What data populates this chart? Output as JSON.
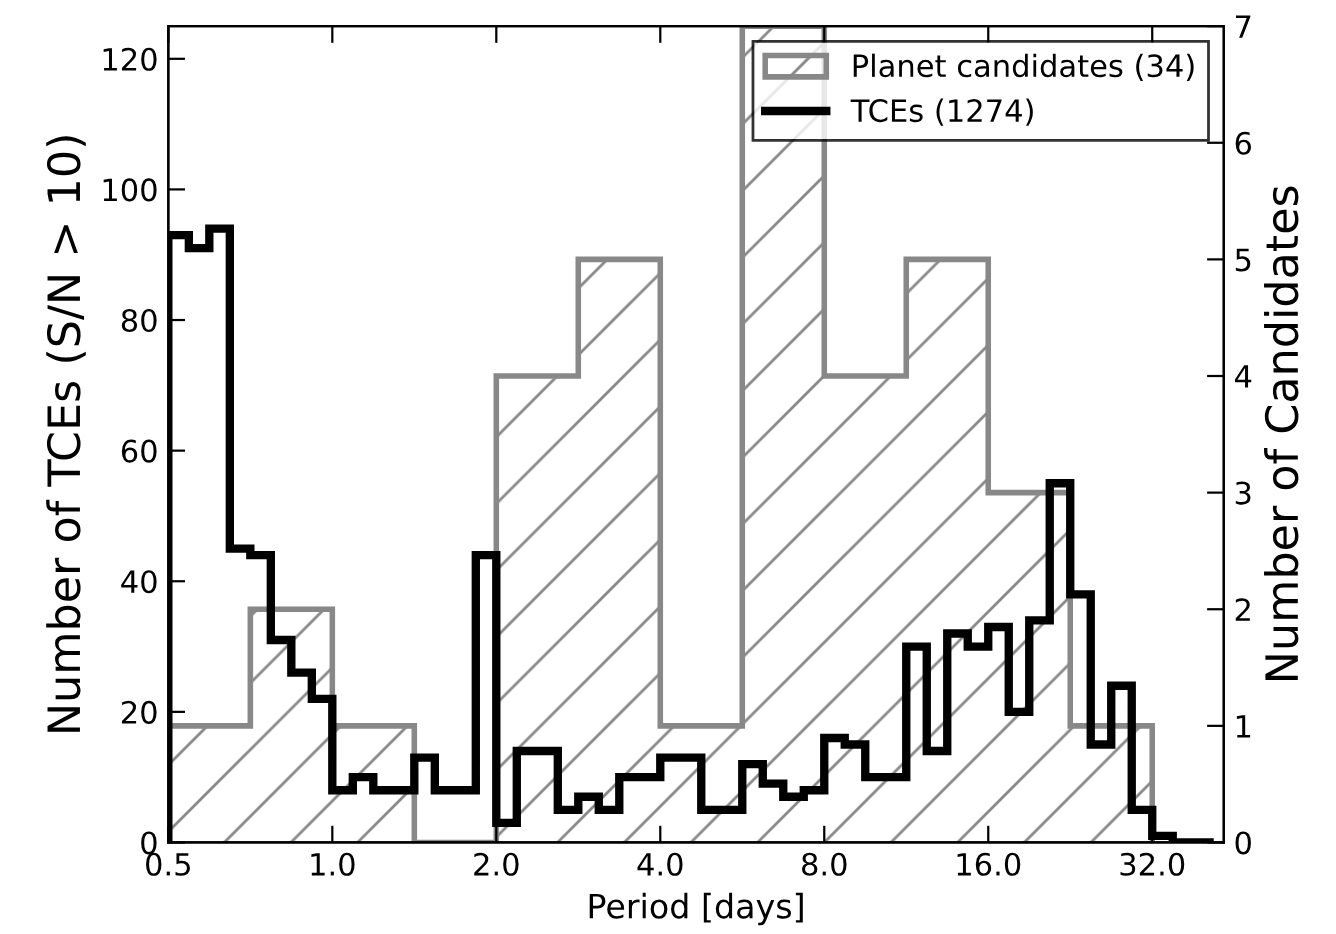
{
  "chart_data": {
    "type": "histogram",
    "xlabel": "Period [days]",
    "ylabel": "Number of TCEs (S/N > 10)",
    "y2label": "Number of Candidates",
    "log": "x",
    "xlim": [
      0.5,
      43.3
    ],
    "xticks": [
      0.5,
      {
        "value": 1,
        "label": "1.0"
      },
      {
        "value": 2,
        "label": "2.0"
      },
      {
        "value": 4,
        "label": "4.0"
      },
      {
        "value": 8,
        "label": "8.0"
      },
      {
        "value": 16,
        "label": "16.0"
      },
      {
        "value": 32,
        "label": "32.0"
      }
    ],
    "ylim": [
      0,
      125
    ],
    "yticks": [
      0,
      20,
      40,
      60,
      80,
      100,
      120
    ],
    "y2lim": [
      0,
      7
    ],
    "y2ticks": [
      0,
      1,
      2,
      3,
      4,
      5,
      6,
      7
    ],
    "grid": false,
    "legend": "top right",
    "bins": [
      0.5,
      0.5453,
      0.5946,
      0.6484,
      0.7071,
      0.7711,
      0.8409,
      0.917,
      1,
      1.0905,
      1.1892,
      1.2968,
      1.4142,
      1.5422,
      1.6818,
      1.834,
      2,
      2.181,
      2.3784,
      2.5937,
      2.8284,
      3.0844,
      3.3636,
      3.668,
      4,
      4.362,
      4.7568,
      5.1874,
      5.6569,
      6.1688,
      6.7272,
      7.336,
      8,
      8.724,
      9.5137,
      10.3747,
      11.3137,
      12.3377,
      13.4543,
      14.672,
      16,
      17.4481,
      19.0273,
      20.7494,
      22.6274,
      24.6754,
      26.9087,
      29.3441,
      32,
      34.8962,
      38.0546,
      41.4989
    ],
    "series": [
      {
        "name": "Planet candidates (34)",
        "color": "#888888",
        "axis": "y2",
        "bins": [
          0.5,
          0.7071,
          1,
          1.4142,
          2,
          2.8284,
          4,
          5.6569,
          8,
          11.3137,
          16,
          22.6274,
          32
        ],
        "values": [
          1,
          2,
          1,
          0,
          4,
          5,
          1,
          7,
          4,
          5,
          3,
          1
        ]
      },
      {
        "name": "TCEs (1274)",
        "color": "#000000",
        "axis": "y",
        "values": [
          93,
          91,
          94,
          45,
          44,
          31,
          26,
          22,
          8,
          10,
          8,
          8,
          13,
          8,
          8,
          44,
          3,
          14,
          14,
          5,
          7,
          5,
          10,
          10,
          13,
          13,
          5,
          5,
          12,
          9,
          7,
          8,
          16,
          15,
          10,
          10,
          30,
          14,
          32,
          30,
          33,
          20,
          34,
          55,
          38,
          15,
          24,
          5,
          1,
          0,
          0
        ]
      }
    ]
  }
}
